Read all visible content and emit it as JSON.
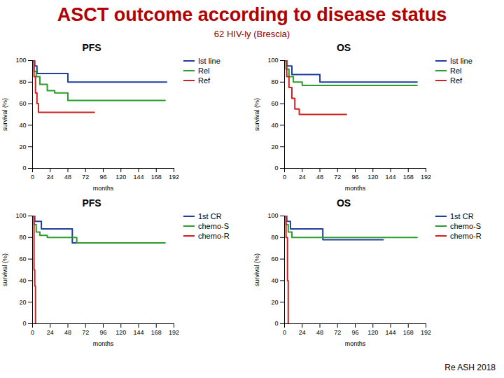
{
  "title": "ASCT outcome according to disease status",
  "subtitle": "62 HIV-ly (Brescia)",
  "caption": "Re ASH 2018",
  "chart_data": [
    {
      "type": "line",
      "title": "PFS",
      "x_label": "months",
      "y_label": "survival (%)",
      "xlim": [
        0,
        192
      ],
      "xticks": [
        0,
        24,
        48,
        72,
        96,
        120,
        144,
        168,
        192
      ],
      "ylim": [
        0,
        100
      ],
      "yticks": [
        0,
        20,
        40,
        60,
        80,
        100
      ],
      "line_style": "step",
      "legend": "right",
      "series": [
        {
          "name": "Ist line",
          "color": "#1f3fa0",
          "x": [
            0,
            3,
            6,
            48,
            182
          ],
          "values": [
            100,
            95,
            88,
            80,
            80
          ]
        },
        {
          "name": "Rel",
          "color": "#2a9d2a",
          "x": [
            0,
            2,
            5,
            10,
            20,
            30,
            48,
            180
          ],
          "values": [
            100,
            90,
            85,
            78,
            72,
            70,
            63,
            63
          ]
        },
        {
          "name": "Ref",
          "color": "#d02020",
          "x": [
            0,
            2,
            4,
            6,
            8,
            84
          ],
          "values": [
            100,
            85,
            70,
            60,
            52,
            52
          ]
        }
      ]
    },
    {
      "type": "line",
      "title": "OS",
      "x_label": "months",
      "y_label": "survival (%)",
      "xlim": [
        0,
        192
      ],
      "xticks": [
        0,
        24,
        48,
        72,
        96,
        120,
        144,
        168,
        192
      ],
      "ylim": [
        0,
        100
      ],
      "yticks": [
        0,
        20,
        40,
        60,
        80,
        100
      ],
      "line_style": "step",
      "legend": "right",
      "series": [
        {
          "name": "Ist line",
          "color": "#1f3fa0",
          "x": [
            0,
            3,
            10,
            48,
            180
          ],
          "values": [
            100,
            95,
            87,
            80,
            80
          ]
        },
        {
          "name": "Rel",
          "color": "#2a9d2a",
          "x": [
            0,
            2,
            6,
            12,
            24,
            180
          ],
          "values": [
            100,
            92,
            85,
            80,
            77,
            77
          ]
        },
        {
          "name": "Ref",
          "color": "#d02020",
          "x": [
            0,
            3,
            6,
            10,
            14,
            20,
            84
          ],
          "values": [
            100,
            85,
            75,
            65,
            55,
            50,
            50
          ]
        }
      ]
    },
    {
      "type": "line",
      "title": "PFS",
      "x_label": "months",
      "y_label": "survival (%)",
      "xlim": [
        0,
        192
      ],
      "xticks": [
        0,
        24,
        48,
        72,
        96,
        120,
        144,
        168,
        192
      ],
      "ylim": [
        0,
        100
      ],
      "yticks": [
        0,
        20,
        40,
        60,
        80,
        100
      ],
      "line_style": "step",
      "legend": "right",
      "series": [
        {
          "name": "1st CR",
          "color": "#1f3fa0",
          "x": [
            0,
            3,
            12,
            54,
            136
          ],
          "values": [
            100,
            95,
            88,
            75,
            75
          ]
        },
        {
          "name": "chemo-S",
          "color": "#2a9d2a",
          "x": [
            0,
            2,
            5,
            10,
            20,
            60,
            180
          ],
          "values": [
            100,
            92,
            85,
            82,
            80,
            75,
            75
          ]
        },
        {
          "name": "chemo-R",
          "color": "#d02020",
          "x": [
            0,
            2,
            3,
            4
          ],
          "values": [
            100,
            50,
            35,
            0
          ]
        }
      ]
    },
    {
      "type": "line",
      "title": "OS",
      "x_label": "months",
      "y_label": "survival (%)",
      "xlim": [
        0,
        192
      ],
      "xticks": [
        0,
        24,
        48,
        72,
        96,
        120,
        144,
        168,
        192
      ],
      "ylim": [
        0,
        100
      ],
      "yticks": [
        0,
        20,
        40,
        60,
        80,
        100
      ],
      "line_style": "step",
      "legend": "right",
      "series": [
        {
          "name": "1st CR",
          "color": "#1f3fa0",
          "x": [
            0,
            3,
            8,
            52,
            134
          ],
          "values": [
            100,
            95,
            88,
            78,
            78
          ]
        },
        {
          "name": "chemo-S",
          "color": "#2a9d2a",
          "x": [
            0,
            2,
            5,
            10,
            180
          ],
          "values": [
            100,
            92,
            85,
            80,
            80
          ]
        },
        {
          "name": "chemo-R",
          "color": "#d02020",
          "x": [
            0,
            2,
            4,
            5
          ],
          "values": [
            100,
            80,
            40,
            0
          ]
        }
      ]
    }
  ]
}
